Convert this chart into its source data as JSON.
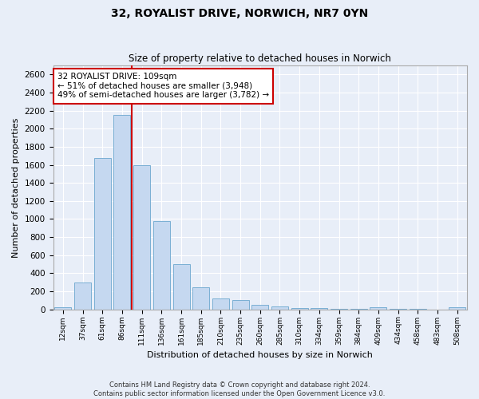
{
  "title": "32, ROYALIST DRIVE, NORWICH, NR7 0YN",
  "subtitle": "Size of property relative to detached houses in Norwich",
  "xlabel": "Distribution of detached houses by size in Norwich",
  "ylabel": "Number of detached properties",
  "categories": [
    "12sqm",
    "37sqm",
    "61sqm",
    "86sqm",
    "111sqm",
    "136sqm",
    "161sqm",
    "185sqm",
    "210sqm",
    "235sqm",
    "260sqm",
    "285sqm",
    "310sqm",
    "334sqm",
    "359sqm",
    "384sqm",
    "409sqm",
    "434sqm",
    "458sqm",
    "483sqm",
    "508sqm"
  ],
  "values": [
    25,
    300,
    1675,
    2150,
    1600,
    975,
    500,
    248,
    125,
    100,
    50,
    30,
    15,
    18,
    5,
    5,
    20,
    5,
    5,
    0,
    25
  ],
  "bar_color": "#c5d8f0",
  "bar_edge_color": "#7aafd4",
  "property_line_index": 4,
  "annotation_text": "32 ROYALIST DRIVE: 109sqm\n← 51% of detached houses are smaller (3,948)\n49% of semi-detached houses are larger (3,782) →",
  "annotation_box_color": "#ffffff",
  "annotation_box_edge": "#cc0000",
  "vline_color": "#cc0000",
  "ylim": [
    0,
    2700
  ],
  "yticks": [
    0,
    200,
    400,
    600,
    800,
    1000,
    1200,
    1400,
    1600,
    1800,
    2000,
    2200,
    2400,
    2600
  ],
  "footer_line1": "Contains HM Land Registry data © Crown copyright and database right 2024.",
  "footer_line2": "Contains public sector information licensed under the Open Government Licence v3.0.",
  "background_color": "#e8eef8",
  "grid_color": "#ffffff"
}
